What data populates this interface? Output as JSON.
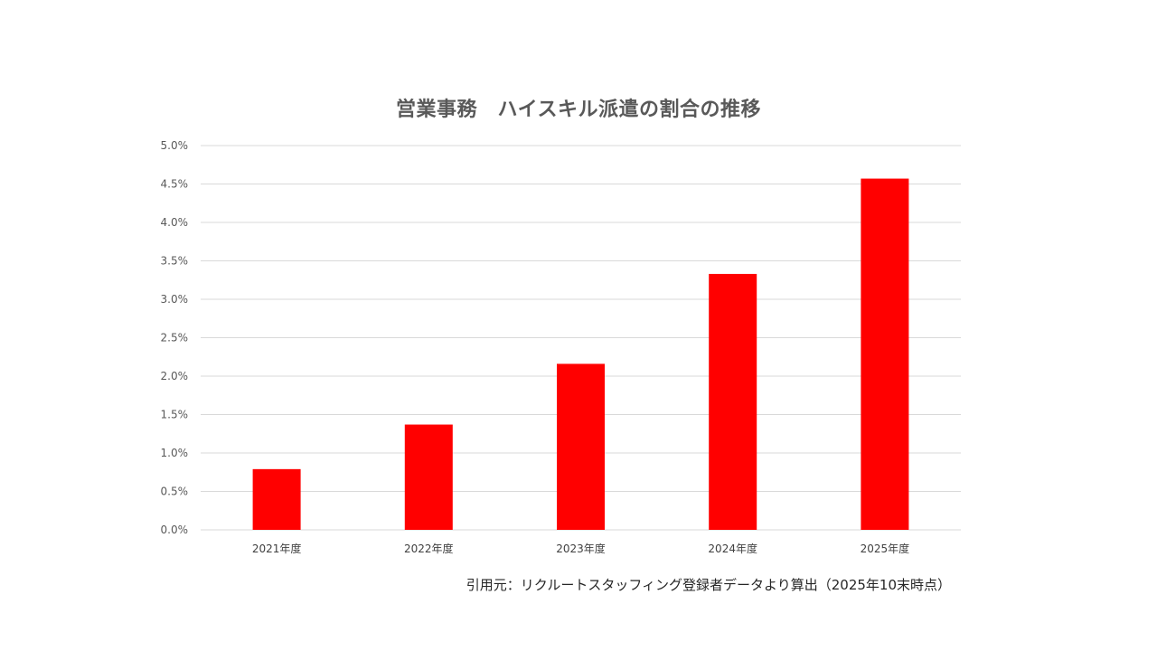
{
  "chart_data": {
    "type": "bar",
    "title": "営業事務　ハイスキル派遣の割合の推移",
    "categories": [
      "2021年度",
      "2022年度",
      "2023年度",
      "2024年度",
      "2025年度"
    ],
    "values": [
      0.79,
      1.37,
      2.16,
      3.33,
      4.57
    ],
    "value_unit": "%",
    "ylim": [
      0,
      5
    ],
    "yticks": [
      "0.0%",
      "0.5%",
      "1.0%",
      "1.5%",
      "2.0%",
      "2.5%",
      "3.0%",
      "3.5%",
      "4.0%",
      "4.5%",
      "5.0%"
    ],
    "ytick_values": [
      0,
      0.5,
      1.0,
      1.5,
      2.0,
      2.5,
      3.0,
      3.5,
      4.0,
      4.5,
      5.0
    ],
    "xlabel": "",
    "ylabel": "",
    "grid": true,
    "legend": "none",
    "bar_color": "#FF0000",
    "source_note": "引用元：リクルートスタッフィング登録者データより算出（2025年10末時点）"
  }
}
